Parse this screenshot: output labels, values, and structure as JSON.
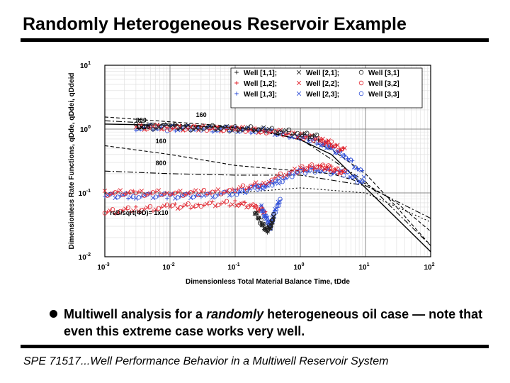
{
  "slide": {
    "title": "Randomly Heterogeneous Reservoir Example",
    "bullet_before": "Multiwell analysis for a ",
    "bullet_emph": "randomly",
    "bullet_after": " heterogeneous oil case — note that even this extreme case works very well.",
    "footer": "SPE 71517...Well Performance Behavior in a Multiwell Reservoir System"
  },
  "chart_data": {
    "type": "scatter",
    "xscale": "log",
    "yscale": "log",
    "xlim": [
      0.001,
      100
    ],
    "ylim": [
      0.01,
      10
    ],
    "xticks": [
      "10-3",
      "10-2",
      "10-1",
      "100",
      "101",
      "102"
    ],
    "yticks": [
      "10-2",
      "10-1",
      "100",
      "101"
    ],
    "xlabel": "Dimensionless Total Material Balance Time, tDde",
    "ylabel": "Dimensionless Rate Functions, qDde, qDdei, qDdeid",
    "grid": true,
    "legend_position": "top-right",
    "legend": [
      {
        "label": "Well [1,1];",
        "marker": "plus",
        "color": "#202020"
      },
      {
        "label": "Well [2,1];",
        "marker": "x",
        "color": "#202020"
      },
      {
        "label": "Well [3,1]",
        "marker": "circle",
        "color": "#202020"
      },
      {
        "label": "Well [1,2];",
        "marker": "plus",
        "color": "#e0202a"
      },
      {
        "label": "Well [2,2];",
        "marker": "x",
        "color": "#e0202a"
      },
      {
        "label": "Well [3,2]",
        "marker": "circle",
        "color": "#e0202a"
      },
      {
        "label": "Well [1,3];",
        "marker": "plus",
        "color": "#3050d8"
      },
      {
        "label": "Well [2,3];",
        "marker": "x",
        "color": "#3050d8"
      },
      {
        "label": "Well [3,3]",
        "marker": "circle",
        "color": "#3050d8"
      }
    ],
    "annotations": [
      "160",
      "800",
      "1x10",
      "160",
      "800",
      "reD/sqrt(ΦD)= 1x10"
    ],
    "curves": {
      "decline_rate": {
        "x": [
          0.001,
          0.01,
          0.1,
          0.3,
          1,
          3,
          10,
          30,
          100
        ],
        "y": [
          1.2,
          1.15,
          1.05,
          0.92,
          0.68,
          0.4,
          0.12,
          0.04,
          0.012
        ]
      },
      "decline_160": {
        "x": [
          0.001,
          0.01,
          0.1,
          0.5,
          1,
          3,
          10,
          30,
          100
        ],
        "y": [
          1.55,
          1.3,
          1.1,
          0.92,
          0.75,
          0.48,
          0.2,
          0.06,
          0.015
        ]
      },
      "decline_800": {
        "x": [
          0.001,
          0.01,
          0.1,
          1,
          10,
          100
        ],
        "y": [
          1.35,
          1.2,
          1.07,
          0.7,
          0.15,
          0.015
        ]
      },
      "integral_160": {
        "x": [
          0.001,
          0.01,
          0.1,
          1,
          3,
          10,
          30,
          100
        ],
        "y": [
          0.55,
          0.4,
          0.27,
          0.22,
          0.2,
          0.14,
          0.07,
          0.025
        ]
      },
      "integral_800": {
        "x": [
          0.001,
          0.01,
          0.1,
          1,
          10,
          100
        ],
        "y": [
          0.22,
          0.2,
          0.19,
          0.19,
          0.13,
          0.04
        ]
      },
      "integral_1e": {
        "x": [
          0.001,
          0.01,
          0.1,
          1,
          10,
          100
        ],
        "y": [
          0.1,
          0.1,
          0.1,
          0.12,
          0.1,
          0.035
        ]
      }
    },
    "series": [
      {
        "name": "rate",
        "color": "#3050d8",
        "x": [
          0.003,
          0.01,
          0.03,
          0.1,
          0.3,
          1,
          2,
          3,
          5,
          10
        ],
        "y": [
          1.05,
          1.03,
          1.0,
          0.98,
          0.92,
          0.75,
          0.62,
          0.5,
          0.38,
          0.18
        ]
      },
      {
        "name": "rate",
        "color": "#e0202a",
        "x": [
          0.003,
          0.01,
          0.03,
          0.1,
          0.3,
          1,
          2,
          3,
          5
        ],
        "y": [
          1.08,
          1.06,
          1.03,
          1.0,
          0.95,
          0.8,
          0.68,
          0.58,
          0.45
        ]
      },
      {
        "name": "rate",
        "color": "#202020",
        "x": [
          0.003,
          0.01,
          0.03,
          0.1,
          0.3,
          1,
          2
        ],
        "y": [
          1.1,
          1.08,
          1.05,
          1.02,
          0.98,
          0.85,
          0.72
        ]
      },
      {
        "name": "integral",
        "color": "#3050d8",
        "x": [
          0.001,
          0.003,
          0.01,
          0.03,
          0.1,
          0.2,
          0.3,
          0.5,
          1,
          2,
          5,
          10
        ],
        "y": [
          0.09,
          0.09,
          0.09,
          0.09,
          0.1,
          0.12,
          0.13,
          0.16,
          0.22,
          0.23,
          0.2,
          0.14
        ]
      },
      {
        "name": "integral",
        "color": "#e0202a",
        "x": [
          0.001,
          0.003,
          0.01,
          0.03,
          0.1,
          0.3,
          1,
          2,
          3,
          5
        ],
        "y": [
          0.1,
          0.1,
          0.1,
          0.1,
          0.11,
          0.15,
          0.24,
          0.26,
          0.24,
          0.2
        ]
      },
      {
        "name": "derivative",
        "color": "#e0202a",
        "x": [
          0.001,
          0.003,
          0.01,
          0.03,
          0.1,
          0.2,
          0.3
        ],
        "y": [
          0.05,
          0.055,
          0.06,
          0.065,
          0.07,
          0.06,
          0.05
        ]
      },
      {
        "name": "derivative",
        "color": "#3050d8",
        "x": [
          0.25,
          0.3,
          0.35,
          0.4,
          0.5
        ],
        "y": [
          0.06,
          0.04,
          0.03,
          0.05,
          0.08
        ]
      },
      {
        "name": "derivative",
        "color": "#202020",
        "x": [
          0.2,
          0.25,
          0.3,
          0.35,
          0.4
        ],
        "y": [
          0.05,
          0.035,
          0.025,
          0.03,
          0.045
        ]
      }
    ]
  }
}
